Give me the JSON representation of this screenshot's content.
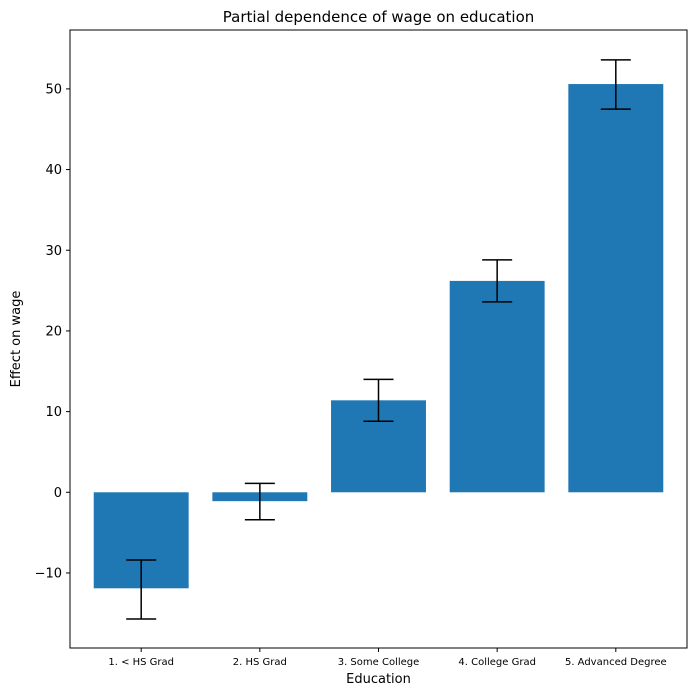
{
  "chart_data": {
    "type": "bar",
    "title": "Partial dependence of wage on education",
    "xlabel": "Education",
    "ylabel": "Effect on wage",
    "categories": [
      "1. < HS Grad",
      "2. HS Grad",
      "3. Some College",
      "4. College Grad",
      "5. Advanced Degree"
    ],
    "values": [
      -11.9,
      -1.1,
      11.4,
      26.2,
      50.6
    ],
    "error_low": [
      -15.7,
      -3.4,
      8.8,
      23.6,
      47.5
    ],
    "error_high": [
      -8.4,
      1.1,
      14.0,
      28.8,
      53.6
    ],
    "ylim": [
      -19.3,
      57.3
    ],
    "yticks": [
      -10,
      0,
      10,
      20,
      30,
      40,
      50
    ],
    "bar_color": "#1f77b4",
    "error_color": "#000000",
    "grid": false
  }
}
